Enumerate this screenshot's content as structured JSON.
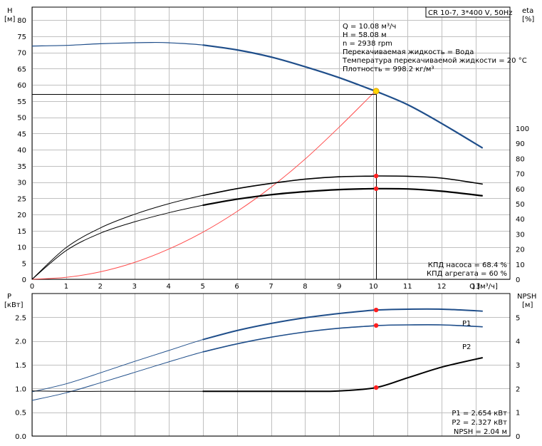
{
  "chart_data": [
    {
      "type": "line",
      "title": "CR 10-7, 3*400 V, 50Hz",
      "xlabel": "Q [м³/ч]",
      "ylabel_left": [
        "H",
        "[м]"
      ],
      "ylabel_right": [
        "eta",
        "[%]"
      ],
      "xlim": [
        0,
        14
      ],
      "ylim_left": [
        0,
        84
      ],
      "ylim_right_eta": [
        0,
        100
      ],
      "x_ticks": [
        "0",
        "1",
        "2",
        "3",
        "4",
        "5",
        "6",
        "7",
        "8",
        "9",
        "10",
        "11",
        "12",
        "13"
      ],
      "y_ticks_left": [
        "0",
        "5",
        "10",
        "15",
        "20",
        "25",
        "30",
        "35",
        "40",
        "45",
        "50",
        "55",
        "60",
        "65",
        "70",
        "75",
        "80"
      ],
      "y_ticks_right": [
        "0",
        "10",
        "20",
        "30",
        "40",
        "50",
        "60",
        "70",
        "80",
        "90",
        "100"
      ],
      "grid": true,
      "series": [
        {
          "name": "H",
          "color": "#1f4e8a",
          "x": [
            0,
            1,
            2,
            3,
            3.5,
            4,
            5,
            6,
            7,
            8,
            9,
            10,
            10.08,
            11,
            12,
            13.2
          ],
          "y": [
            72,
            72.2,
            72.7,
            73.0,
            73.1,
            73.0,
            72.3,
            70.8,
            68.6,
            65.6,
            62.2,
            58.3,
            58.0,
            53.9,
            48.1,
            40.5
          ]
        },
        {
          "name": "КПД насоса",
          "color": "#000000",
          "axis": "right",
          "x": [
            0,
            1,
            2,
            3,
            4,
            5,
            6,
            7,
            8,
            9,
            10,
            10.08,
            11,
            12,
            13.2
          ],
          "y": [
            0,
            21,
            34,
            43,
            50,
            55.5,
            60,
            63.5,
            66.3,
            67.9,
            68.3,
            68.4,
            68.2,
            67.0,
            63.0
          ]
        },
        {
          "name": "КПД агрегата",
          "color": "#000000",
          "axis": "right",
          "x": [
            0,
            1,
            2,
            3,
            4,
            5,
            6,
            7,
            8,
            9,
            10,
            10.08,
            11,
            12,
            13.2
          ],
          "y": [
            0,
            19,
            30.5,
            38,
            44,
            49,
            53,
            56,
            58,
            59.4,
            60,
            60,
            59.8,
            58.3,
            55.3
          ]
        },
        {
          "name": "system curve",
          "color": "#ff4c4c",
          "x": [
            0,
            1,
            2,
            3,
            4,
            5,
            6,
            7,
            8,
            9,
            10.08
          ],
          "y": [
            0,
            0.6,
            2.3,
            5.2,
            9.3,
            14.5,
            20.9,
            28.4,
            37.1,
            47.0,
            58.3
          ]
        }
      ],
      "duty_point": {
        "x": 10.08,
        "H": 58.08,
        "H_line": 57.2
      },
      "annotations": [
        "Q = 10.08 м³/ч",
        "H = 58.08 м",
        "n = 2938 rpm",
        "Перекачиваемая жидкость = Вода",
        "Температура перекачиваемой жидкости = 20 °C",
        "Плотность = 998.2 кг/м³"
      ],
      "efficiency_labels": [
        "КПД насоса = 68.4 %",
        "КПД агрегата = 60 %"
      ]
    },
    {
      "type": "line",
      "xlabel": "",
      "ylabel_left": [
        "P",
        "[кВт]"
      ],
      "ylabel_right": [
        "NPSH",
        "[м]"
      ],
      "xlim": [
        0,
        14
      ],
      "ylim_left": [
        0,
        3
      ],
      "ylim_right": [
        0,
        6
      ],
      "y_ticks_left": [
        "0.0",
        "0.5",
        "1.0",
        "1.5",
        "2.0",
        "2.5"
      ],
      "y_ticks_right": [
        "0",
        "1",
        "2",
        "3",
        "4",
        "5"
      ],
      "grid": true,
      "series": [
        {
          "name": "P1",
          "color": "#1f4e8a",
          "x": [
            0,
            1,
            2,
            3,
            4,
            5,
            6,
            7,
            8,
            9,
            10,
            10.08,
            11,
            12,
            13.2
          ],
          "y": [
            0.93,
            1.1,
            1.33,
            1.57,
            1.8,
            2.03,
            2.22,
            2.37,
            2.49,
            2.58,
            2.65,
            2.654,
            2.67,
            2.67,
            2.63
          ]
        },
        {
          "name": "P2",
          "color": "#1f4e8a",
          "x": [
            0,
            1,
            2,
            3,
            4,
            5,
            6,
            7,
            8,
            9,
            10,
            10.08,
            11,
            12,
            13.2
          ],
          "y": [
            0.75,
            0.91,
            1.12,
            1.34,
            1.56,
            1.77,
            1.94,
            2.08,
            2.19,
            2.27,
            2.32,
            2.327,
            2.34,
            2.34,
            2.3
          ]
        },
        {
          "name": "NPSH",
          "color": "#000000",
          "axis": "right",
          "x": [
            0,
            1,
            2,
            3,
            4,
            5,
            6,
            7,
            8,
            9,
            10.08,
            11,
            12,
            13.2
          ],
          "y": [
            1.9,
            1.88,
            1.88,
            1.88,
            1.88,
            1.88,
            1.88,
            1.88,
            1.88,
            1.9,
            2.04,
            2.45,
            2.9,
            3.3
          ]
        }
      ],
      "series_tags": {
        "p1": "P1",
        "p2": "P2"
      },
      "labels": [
        "P1 = 2.654 кВт",
        "P2 = 2.327 кВт",
        "NPSH = 2.04 м"
      ]
    }
  ]
}
